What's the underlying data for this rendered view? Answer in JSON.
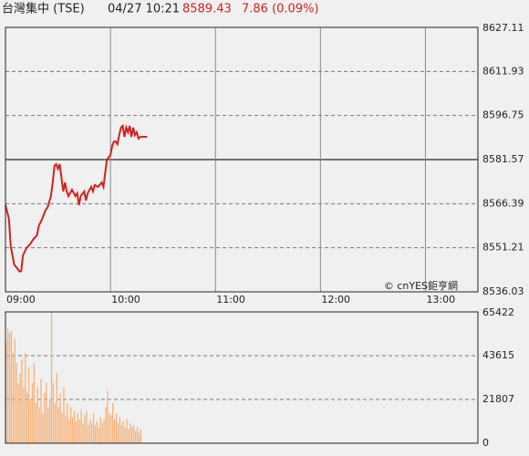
{
  "header": {
    "name": "台灣集中 (TSE)",
    "datetime": "04/27 10:21",
    "price": 8589.43,
    "change": "7.86 (0.09%)"
  },
  "chart_data": [
    {
      "type": "line",
      "color": "#d42020",
      "x": [
        "09:00",
        "09:02",
        "09:03",
        "09:05",
        "09:07",
        "09:08",
        "09:09",
        "09:10",
        "09:12",
        "09:14",
        "09:16",
        "09:18",
        "09:19",
        "09:21",
        "09:23",
        "09:24",
        "09:26",
        "09:27",
        "09:28",
        "09:29",
        "09:30",
        "09:31",
        "09:32",
        "09:33",
        "09:34",
        "09:35",
        "09:36",
        "09:38",
        "09:40",
        "09:41",
        "09:42",
        "09:43",
        "09:45",
        "09:46",
        "09:47",
        "09:49",
        "09:50",
        "09:51",
        "09:53",
        "09:55",
        "09:56",
        "09:57",
        "09:58",
        "10:00",
        "10:01",
        "10:02",
        "10:03",
        "10:04",
        "10:05",
        "10:06",
        "10:07",
        "10:08",
        "10:09",
        "10:10",
        "10:11",
        "10:12",
        "10:13",
        "10:14",
        "10:15",
        "10:16",
        "10:17",
        "10:21"
      ],
      "values": [
        8565.9,
        8561.1,
        8551.7,
        8545.4,
        8543.9,
        8543.0,
        8543.2,
        8548.6,
        8551.1,
        8552.4,
        8554.2,
        8555.5,
        8558.7,
        8561.2,
        8564.3,
        8565.0,
        8569.0,
        8573.7,
        8579.4,
        8580.0,
        8578.4,
        8580.0,
        8575.3,
        8570.6,
        8573.7,
        8570.6,
        8569.0,
        8571.2,
        8569.0,
        8570.0,
        8565.9,
        8569.0,
        8570.6,
        8567.5,
        8570.0,
        8572.2,
        8570.6,
        8572.8,
        8572.2,
        8573.7,
        8572.2,
        8577.0,
        8581.6,
        8583.1,
        8586.3,
        8587.8,
        8587.8,
        8586.9,
        8590.0,
        8592.6,
        8593.2,
        8589.4,
        8592.6,
        8591.0,
        8593.2,
        8589.4,
        8592.6,
        8590.0,
        8591.0,
        8588.8,
        8589.4,
        8589.43
      ],
      "xlim": [
        "09:00",
        "13:30"
      ],
      "xticks": [
        "09:00",
        "10:00",
        "11:00",
        "12:00",
        "13:00"
      ],
      "ylim": [
        8536.03,
        8627.11
      ],
      "yticks": [
        8536.03,
        8551.21,
        8566.39,
        8581.57,
        8596.75,
        8611.93,
        8627.11
      ],
      "reference": 8581.57,
      "grid": true,
      "annotation": "© cnYES鉅亨網"
    },
    {
      "type": "bar",
      "color": "#f5b27a",
      "x": [
        "09:00",
        "09:01",
        "09:02",
        "09:03",
        "09:04",
        "09:05",
        "09:06",
        "09:07",
        "09:08",
        "09:09",
        "09:10",
        "09:11",
        "09:12",
        "09:13",
        "09:14",
        "09:15",
        "09:16",
        "09:17",
        "09:18",
        "09:19",
        "09:20",
        "09:21",
        "09:22",
        "09:23",
        "09:24",
        "09:25",
        "09:26",
        "09:27",
        "09:28",
        "09:29",
        "09:30",
        "09:31",
        "09:32",
        "09:33",
        "09:34",
        "09:35",
        "09:36",
        "09:37",
        "09:38",
        "09:39",
        "09:40",
        "09:41",
        "09:42",
        "09:43",
        "09:44",
        "09:45",
        "09:46",
        "09:47",
        "09:48",
        "09:49",
        "09:50",
        "09:51",
        "09:52",
        "09:53",
        "09:54",
        "09:55",
        "09:56",
        "09:57",
        "09:58",
        "09:59",
        "10:00",
        "10:01",
        "10:02",
        "10:03",
        "10:04",
        "10:05",
        "10:06",
        "10:07",
        "10:08",
        "10:09",
        "10:10",
        "10:11",
        "10:12",
        "10:13",
        "10:14",
        "10:15",
        "10:16",
        "10:17"
      ],
      "values": [
        50000,
        57000,
        55000,
        56000,
        45000,
        52000,
        40000,
        30000,
        35000,
        42000,
        28000,
        45000,
        25000,
        38000,
        22000,
        30000,
        40000,
        20000,
        28000,
        18000,
        32000,
        15000,
        25000,
        30000,
        18000,
        22000,
        65000,
        30000,
        20000,
        35000,
        18000,
        25000,
        15000,
        28000,
        14000,
        20000,
        12000,
        18000,
        13000,
        16000,
        11000,
        15000,
        12000,
        17000,
        10000,
        14000,
        16000,
        9000,
        12000,
        10000,
        15000,
        9000,
        11000,
        8000,
        13000,
        10000,
        12000,
        18000,
        26000,
        15000,
        14000,
        20000,
        12000,
        15000,
        10000,
        13000,
        9000,
        11000,
        8000,
        12000,
        7000,
        10000,
        8000,
        9000,
        6000,
        8000,
        5000,
        7000
      ],
      "xlim": [
        "09:00",
        "13:30"
      ],
      "xticks": [
        "09:00",
        "10:00",
        "11:00",
        "12:00",
        "13:00"
      ],
      "ylim": [
        0,
        65422
      ],
      "yticks": [
        0,
        21807,
        43615,
        65422
      ],
      "grid": true
    }
  ]
}
